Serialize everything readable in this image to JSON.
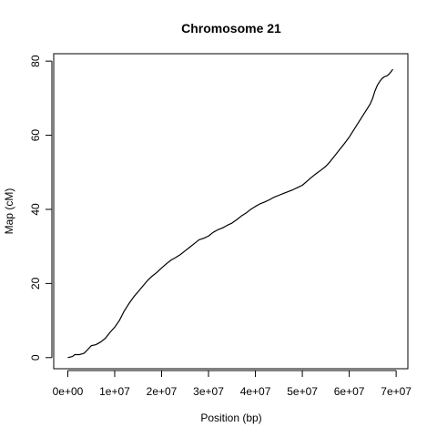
{
  "chart_data": {
    "type": "line",
    "title": "Chromosome 21",
    "xlabel": "Position (bp)",
    "ylabel": "Map (cM)",
    "xlim": [
      -3000000,
      72500000
    ],
    "ylim": [
      -3,
      82
    ],
    "x_ticks": [
      0,
      10000000,
      20000000,
      30000000,
      40000000,
      50000000,
      60000000,
      70000000
    ],
    "x_tick_labels": [
      "0e+00",
      "1e+07",
      "2e+07",
      "3e+07",
      "4e+07",
      "5e+07",
      "6e+07",
      "7e+07"
    ],
    "y_ticks": [
      0,
      20,
      40,
      60,
      80
    ],
    "y_tick_labels": [
      "0",
      "20",
      "40",
      "60",
      "80"
    ],
    "grid": false,
    "legend": false,
    "series": [
      {
        "color": "#000000",
        "x": [
          0,
          1000000,
          1500000,
          2500000,
          3500000,
          4500000,
          5000000,
          6000000,
          7000000,
          8000000,
          9000000,
          10000000,
          11000000,
          12000000,
          13000000,
          14000000,
          15000000,
          16000000,
          17000000,
          18000000,
          19000000,
          20000000,
          21000000,
          22000000,
          23000000,
          24000000,
          25000000,
          26000000,
          27000000,
          28000000,
          29000000,
          30000000,
          31000000,
          32000000,
          33000000,
          34000000,
          35000000,
          36000000,
          37000000,
          38000000,
          39000000,
          40000000,
          41000000,
          42000000,
          43000000,
          44000000,
          45000000,
          46000000,
          47000000,
          48000000,
          49000000,
          50000000,
          51000000,
          52000000,
          53000000,
          54000000,
          55000000,
          56000000,
          57000000,
          58000000,
          59000000,
          60000000,
          61000000,
          62000000,
          63000000,
          64000000,
          64500000,
          65000000,
          65500000,
          66000000,
          66500000,
          67000000,
          67500000,
          68000000,
          68500000,
          69000000,
          69300000
        ],
        "y": [
          0,
          0.3,
          0.8,
          0.8,
          1.2,
          2.5,
          3.2,
          3.5,
          4.2,
          5.2,
          6.8,
          8.2,
          10.0,
          12.5,
          14.5,
          16.3,
          17.8,
          19.3,
          20.8,
          22.0,
          23.0,
          24.2,
          25.3,
          26.3,
          27.0,
          27.8,
          28.8,
          29.8,
          30.8,
          31.8,
          32.2,
          32.8,
          33.8,
          34.5,
          35.0,
          35.7,
          36.3,
          37.2,
          38.2,
          39.0,
          40.0,
          40.8,
          41.5,
          42.0,
          42.6,
          43.3,
          43.8,
          44.3,
          44.8,
          45.3,
          45.9,
          46.5,
          47.6,
          48.7,
          49.7,
          50.6,
          51.6,
          53.0,
          54.6,
          56.2,
          57.8,
          59.5,
          61.5,
          63.5,
          65.5,
          67.5,
          68.5,
          70.0,
          72.0,
          73.5,
          74.5,
          75.3,
          75.8,
          76.0,
          76.5,
          77.3,
          77.8
        ]
      }
    ]
  }
}
